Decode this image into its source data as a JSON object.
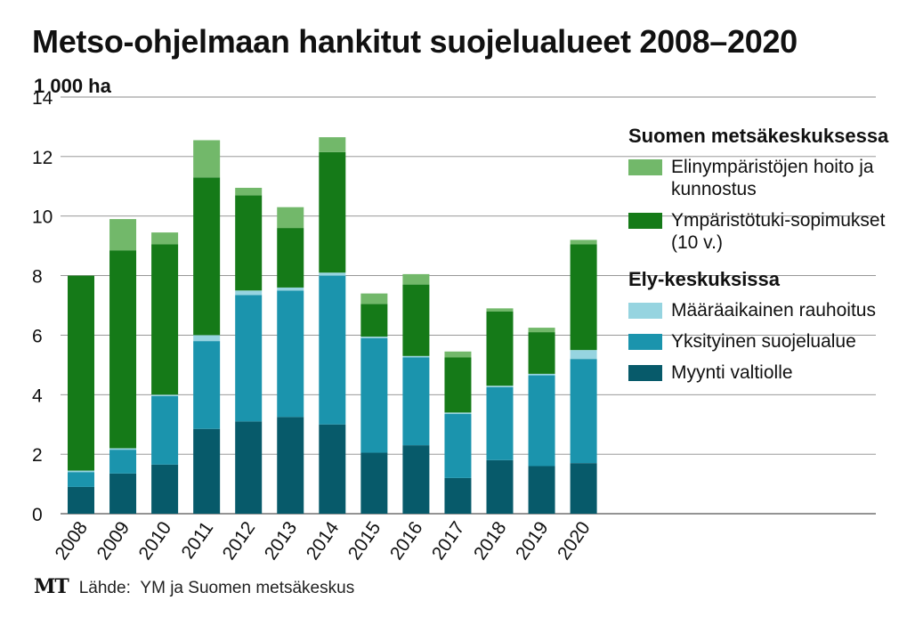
{
  "title": "Metso-ohjelmaan hankitut suojelualueet 2008–2020",
  "unit_label": "1 000 ha",
  "source": {
    "logo": "MT",
    "label": "Lähde:",
    "text": "YM ja Suomen metsäkeskus"
  },
  "legend": {
    "group1_heading": "Suomen metsäkeskuksessa",
    "group2_heading": "Ely-keskuksissa",
    "items": [
      {
        "label": "Elinympäristöjen hoito ja kunnostus",
        "color": "#72b86a"
      },
      {
        "label": "Ympäristötuki-sopimukset (10 v.)",
        "color": "#157a18"
      },
      {
        "label": "Määräaikainen rauhoitus",
        "color": "#96d4e0"
      },
      {
        "label": "Yksityinen suojelualue",
        "color": "#1b94ad"
      },
      {
        "label": "Myynti valtiolle",
        "color": "#075a6a"
      }
    ]
  },
  "chart_data": {
    "type": "bar",
    "stacked": true,
    "categories": [
      "2008",
      "2009",
      "2010",
      "2011",
      "2012",
      "2013",
      "2014",
      "2015",
      "2016",
      "2017",
      "2018",
      "2019",
      "2020"
    ],
    "ylim": [
      0,
      14
    ],
    "yticks": [
      0,
      2,
      4,
      6,
      8,
      10,
      12,
      14
    ],
    "ylabel": "1 000 ha",
    "grid": true,
    "legend_position": "right",
    "series": [
      {
        "name": "Myynti valtiolle",
        "color": "#075a6a",
        "values": [
          0.9,
          1.35,
          1.65,
          2.85,
          3.1,
          3.25,
          3.0,
          2.05,
          2.3,
          1.2,
          1.8,
          1.6,
          1.7
        ]
      },
      {
        "name": "Yksityinen suojelualue",
        "color": "#1b94ad",
        "values": [
          0.5,
          0.8,
          2.3,
          2.95,
          4.25,
          4.25,
          5.0,
          3.85,
          2.95,
          2.15,
          2.45,
          3.05,
          3.5
        ]
      },
      {
        "name": "Määräaikainen rauhoitus",
        "color": "#96d4e0",
        "values": [
          0.05,
          0.05,
          0.05,
          0.2,
          0.15,
          0.1,
          0.1,
          0.05,
          0.05,
          0.05,
          0.05,
          0.05,
          0.3
        ]
      },
      {
        "name": "Ympäristötuki-sopimukset (10 v.)",
        "color": "#157a18",
        "values": [
          6.55,
          6.65,
          5.05,
          5.3,
          3.2,
          2.0,
          4.05,
          1.1,
          2.4,
          1.85,
          2.5,
          1.4,
          3.55
        ]
      },
      {
        "name": "Elinympäristöjen hoito ja kunnostus",
        "color": "#72b86a",
        "values": [
          0.0,
          1.05,
          0.4,
          1.25,
          0.25,
          0.7,
          0.5,
          0.35,
          0.35,
          0.2,
          0.1,
          0.15,
          0.15
        ]
      }
    ]
  }
}
